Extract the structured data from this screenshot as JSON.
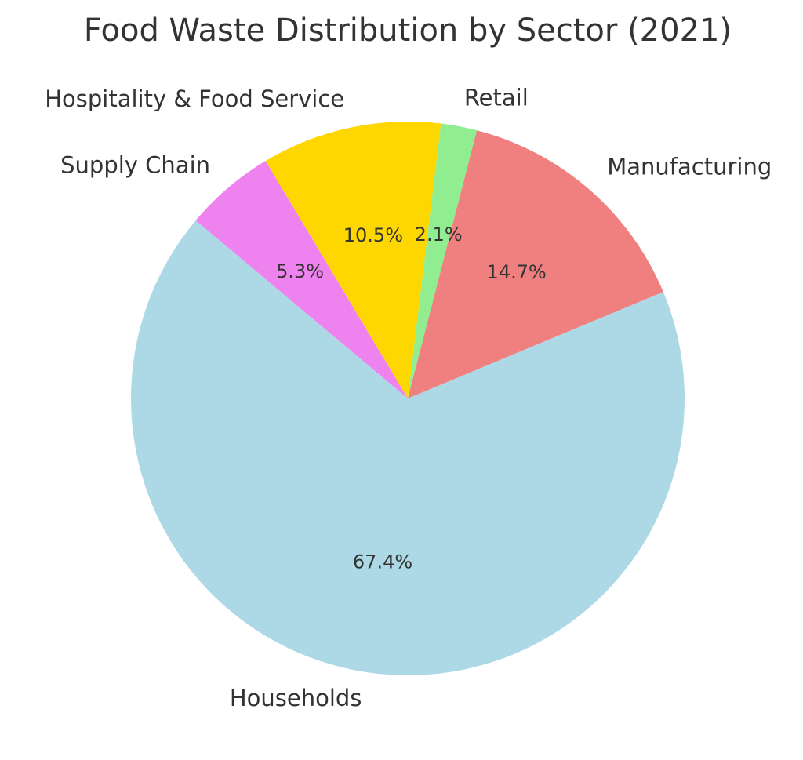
{
  "chart_data": {
    "type": "pie",
    "title": "Food Waste Distribution by Sector (2021)",
    "start_angle_deg": 140,
    "direction": "counterclockwise",
    "slices": [
      {
        "label": "Households",
        "value": 67.4,
        "pct_label": "67.4%",
        "color": "#add8e6"
      },
      {
        "label": "Manufacturing",
        "value": 14.7,
        "pct_label": "14.7%",
        "color": "#f08080"
      },
      {
        "label": "Retail",
        "value": 2.1,
        "pct_label": "2.1%",
        "color": "#90ee90"
      },
      {
        "label": "Hospitality & Food Service",
        "value": 10.5,
        "pct_label": "10.5%",
        "color": "#ffd700"
      },
      {
        "label": "Supply Chain",
        "value": 5.3,
        "pct_label": "5.3%",
        "color": "#ee82ee"
      }
    ]
  }
}
